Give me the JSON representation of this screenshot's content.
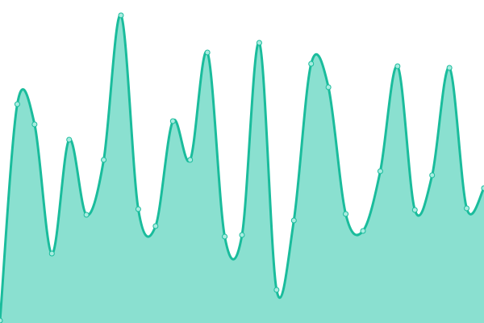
{
  "chart_data": {
    "type": "area",
    "title": "",
    "xlabel": "",
    "ylabel": "",
    "x": [
      0,
      1,
      2,
      3,
      4,
      5,
      6,
      7,
      8,
      9,
      10,
      11,
      12,
      13,
      14,
      15,
      16,
      17,
      18,
      19,
      20,
      21,
      22,
      23,
      24,
      25,
      26,
      27,
      28
    ],
    "values": [
      3,
      271,
      246,
      86,
      227,
      134,
      202,
      381,
      141,
      120,
      250,
      202,
      335,
      107,
      109,
      347,
      41,
      127,
      321,
      292,
      135,
      114,
      188,
      318,
      140,
      183,
      316,
      142,
      167
    ],
    "ylim": [
      0,
      400
    ],
    "grid": false,
    "axes_visible": false,
    "smooth": true,
    "markers": true,
    "colors": {
      "line": "#1abc9c",
      "fill": "#8ae0d0",
      "marker_fill": "#a8ece0"
    }
  }
}
